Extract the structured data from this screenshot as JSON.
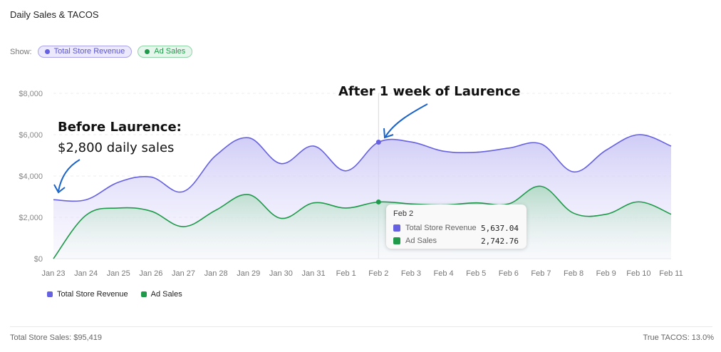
{
  "title": "Daily Sales & TACOS",
  "show": {
    "label": "Show:",
    "chips": [
      {
        "label": "Total Store Revenue",
        "color": "#6661e0"
      },
      {
        "label": "Ad Sales",
        "color": "#1f9a4a"
      }
    ]
  },
  "chart_data": {
    "type": "area",
    "categories": [
      "Jan 23",
      "Jan 24",
      "Jan 25",
      "Jan 26",
      "Jan 27",
      "Jan 28",
      "Jan 29",
      "Jan 30",
      "Jan 31",
      "Feb 1",
      "Feb 2",
      "Feb 3",
      "Feb 4",
      "Feb 5",
      "Feb 6",
      "Feb 7",
      "Feb 8",
      "Feb 9",
      "Feb 10",
      "Feb 11"
    ],
    "series": [
      {
        "name": "Total Store Revenue",
        "color": "#6661e0",
        "values": [
          2850,
          2850,
          3700,
          3950,
          3250,
          5000,
          5850,
          4600,
          5450,
          4250,
          5637.04,
          5650,
          5200,
          5150,
          5350,
          5550,
          4200,
          5250,
          6000,
          5450
        ]
      },
      {
        "name": "Ad Sales",
        "color": "#1f9a4a",
        "values": [
          0,
          2100,
          2450,
          2300,
          1550,
          2350,
          3100,
          1950,
          2700,
          2450,
          2742.76,
          2650,
          2600,
          2700,
          2650,
          3500,
          2200,
          2150,
          2750,
          2150
        ]
      }
    ],
    "ylim": [
      0,
      8000
    ],
    "yticks": [
      0,
      2000,
      4000,
      6000,
      8000
    ],
    "ytick_labels": [
      "$0",
      "$2,000",
      "$4,000",
      "$6,000",
      "$8,000"
    ],
    "xlabel": "",
    "ylabel": "",
    "grid": true,
    "highlight_index": 10,
    "annotations": [
      {
        "line1": "Before Laurence:",
        "line2": "$2,800 daily sales",
        "target_index": 0
      },
      {
        "line1": "After 1 week of Laurence",
        "target_index": 10
      }
    ],
    "tooltip": {
      "date": "Feb 2",
      "rows": [
        {
          "name": "Total Store Revenue",
          "value": "5,637.04",
          "color": "#6661e0"
        },
        {
          "name": "Ad Sales",
          "value": "2,742.76",
          "color": "#1f9a4a"
        }
      ]
    }
  },
  "legend": [
    {
      "label": "Total Store Revenue",
      "color": "#6661e0"
    },
    {
      "label": "Ad Sales",
      "color": "#1f9a4a"
    }
  ],
  "footer": {
    "left": "Total Store Sales: $95,419",
    "right": "True TACOS: 13.0%"
  }
}
